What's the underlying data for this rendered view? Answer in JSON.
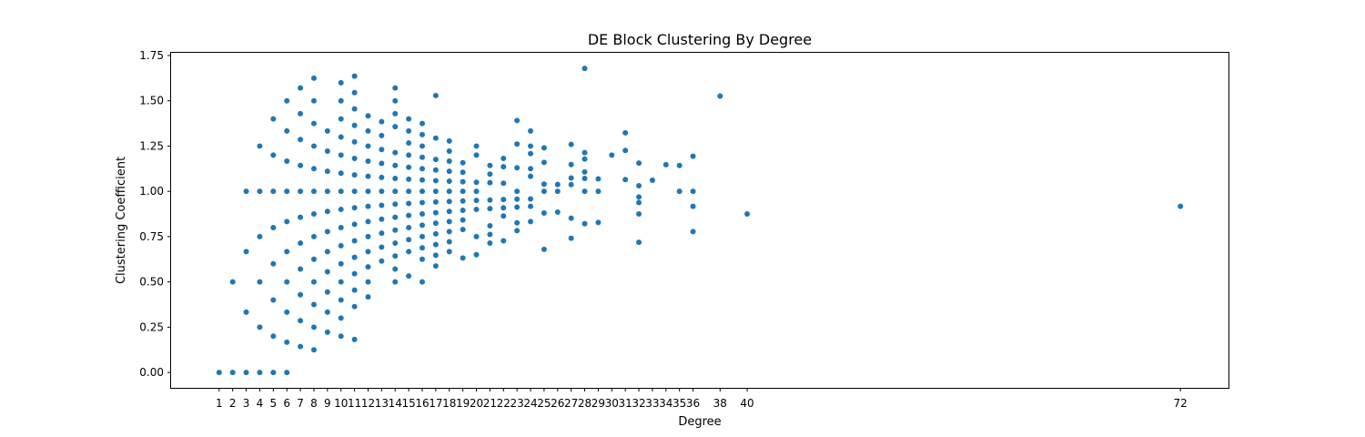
{
  "chart_data": {
    "type": "scatter",
    "title": "DE Block Clustering By Degree",
    "xlabel": "Degree",
    "ylabel": "Clustering Coefficient",
    "xlim": [
      -2.55,
      75.55
    ],
    "ylim": [
      -0.085,
      1.765
    ],
    "xticks": [
      1,
      2,
      3,
      4,
      5,
      6,
      7,
      8,
      9,
      10,
      11,
      12,
      13,
      14,
      15,
      16,
      17,
      18,
      19,
      20,
      21,
      22,
      23,
      24,
      25,
      26,
      27,
      28,
      29,
      30,
      31,
      32,
      33,
      34,
      35,
      36,
      38,
      40,
      72
    ],
    "yticks": [
      0.0,
      0.25,
      0.5,
      0.75,
      1.0,
      1.25,
      1.5,
      1.75
    ],
    "ytick_labels": [
      "0.00",
      "0.25",
      "0.50",
      "0.75",
      "1.00",
      "1.25",
      "1.50",
      "1.75"
    ],
    "marker_color": "#1f77b4",
    "grid": false,
    "points": [
      [
        1,
        0
      ],
      [
        2,
        0
      ],
      [
        2,
        0.5
      ],
      [
        3,
        0
      ],
      [
        3,
        0.333
      ],
      [
        3,
        0.667
      ],
      [
        3,
        1.0
      ],
      [
        4,
        0
      ],
      [
        4,
        0.25
      ],
      [
        4,
        0.5
      ],
      [
        4,
        0.75
      ],
      [
        4,
        1.0
      ],
      [
        4,
        1.25
      ],
      [
        5,
        0
      ],
      [
        5,
        0.2
      ],
      [
        5,
        0.4
      ],
      [
        5,
        0.6
      ],
      [
        5,
        0.8
      ],
      [
        5,
        1.0
      ],
      [
        5,
        1.2
      ],
      [
        5,
        1.4
      ],
      [
        6,
        0
      ],
      [
        6,
        0.167
      ],
      [
        6,
        0.333
      ],
      [
        6,
        0.5
      ],
      [
        6,
        0.667
      ],
      [
        6,
        0.833
      ],
      [
        6,
        1.0
      ],
      [
        6,
        1.167
      ],
      [
        6,
        1.333
      ],
      [
        6,
        1.5
      ],
      [
        7,
        0.143
      ],
      [
        7,
        0.286
      ],
      [
        7,
        0.429
      ],
      [
        7,
        0.571
      ],
      [
        7,
        0.714
      ],
      [
        7,
        0.857
      ],
      [
        7,
        1.0
      ],
      [
        7,
        1.143
      ],
      [
        7,
        1.286
      ],
      [
        7,
        1.429
      ],
      [
        7,
        1.571
      ],
      [
        8,
        0.125
      ],
      [
        8,
        0.25
      ],
      [
        8,
        0.375
      ],
      [
        8,
        0.5
      ],
      [
        8,
        0.625
      ],
      [
        8,
        0.75
      ],
      [
        8,
        0.875
      ],
      [
        8,
        1.0
      ],
      [
        8,
        1.125
      ],
      [
        8,
        1.25
      ],
      [
        8,
        1.375
      ],
      [
        8,
        1.5
      ],
      [
        8,
        1.625
      ],
      [
        9,
        0.222
      ],
      [
        9,
        0.333
      ],
      [
        9,
        0.444
      ],
      [
        9,
        0.556
      ],
      [
        9,
        0.667
      ],
      [
        9,
        0.778
      ],
      [
        9,
        0.889
      ],
      [
        9,
        1.0
      ],
      [
        9,
        1.111
      ],
      [
        9,
        1.222
      ],
      [
        9,
        1.333
      ],
      [
        10,
        0.2
      ],
      [
        10,
        0.3
      ],
      [
        10,
        0.4
      ],
      [
        10,
        0.5
      ],
      [
        10,
        0.6
      ],
      [
        10,
        0.7
      ],
      [
        10,
        0.8
      ],
      [
        10,
        0.9
      ],
      [
        10,
        1.0
      ],
      [
        10,
        1.1
      ],
      [
        10,
        1.2
      ],
      [
        10,
        1.3
      ],
      [
        10,
        1.4
      ],
      [
        10,
        1.5
      ],
      [
        10,
        1.6
      ],
      [
        11,
        0.182
      ],
      [
        11,
        0.364
      ],
      [
        11,
        0.455
      ],
      [
        11,
        0.545
      ],
      [
        11,
        0.636
      ],
      [
        11,
        0.727
      ],
      [
        11,
        0.818
      ],
      [
        11,
        0.909
      ],
      [
        11,
        1.0
      ],
      [
        11,
        1.091
      ],
      [
        11,
        1.182
      ],
      [
        11,
        1.273
      ],
      [
        11,
        1.364
      ],
      [
        11,
        1.455
      ],
      [
        11,
        1.545
      ],
      [
        11,
        1.636
      ],
      [
        12,
        0.417
      ],
      [
        12,
        0.5
      ],
      [
        12,
        0.583
      ],
      [
        12,
        0.667
      ],
      [
        12,
        0.75
      ],
      [
        12,
        0.833
      ],
      [
        12,
        0.917
      ],
      [
        12,
        1.0
      ],
      [
        12,
        1.083
      ],
      [
        12,
        1.167
      ],
      [
        12,
        1.25
      ],
      [
        12,
        1.333
      ],
      [
        12,
        1.417
      ],
      [
        13,
        0.615
      ],
      [
        13,
        0.692
      ],
      [
        13,
        0.769
      ],
      [
        13,
        0.846
      ],
      [
        13,
        0.923
      ],
      [
        13,
        1.0
      ],
      [
        13,
        1.077
      ],
      [
        13,
        1.154
      ],
      [
        13,
        1.231
      ],
      [
        13,
        1.308
      ],
      [
        13,
        1.385
      ],
      [
        14,
        0.5
      ],
      [
        14,
        0.571
      ],
      [
        14,
        0.643
      ],
      [
        14,
        0.714
      ],
      [
        14,
        0.786
      ],
      [
        14,
        0.857
      ],
      [
        14,
        0.929
      ],
      [
        14,
        1.0
      ],
      [
        14,
        1.071
      ],
      [
        14,
        1.143
      ],
      [
        14,
        1.214
      ],
      [
        14,
        1.357
      ],
      [
        14,
        1.429
      ],
      [
        14,
        1.5
      ],
      [
        14,
        1.571
      ],
      [
        15,
        0.533
      ],
      [
        15,
        0.667
      ],
      [
        15,
        0.733
      ],
      [
        15,
        0.8
      ],
      [
        15,
        0.867
      ],
      [
        15,
        0.933
      ],
      [
        15,
        1.0
      ],
      [
        15,
        1.067
      ],
      [
        15,
        1.133
      ],
      [
        15,
        1.2
      ],
      [
        15,
        1.267
      ],
      [
        15,
        1.333
      ],
      [
        15,
        1.4
      ],
      [
        16,
        0.5
      ],
      [
        16,
        0.625
      ],
      [
        16,
        0.688
      ],
      [
        16,
        0.75
      ],
      [
        16,
        0.813
      ],
      [
        16,
        0.875
      ],
      [
        16,
        0.938
      ],
      [
        16,
        1.0
      ],
      [
        16,
        1.063
      ],
      [
        16,
        1.125
      ],
      [
        16,
        1.188
      ],
      [
        16,
        1.25
      ],
      [
        16,
        1.313
      ],
      [
        16,
        1.375
      ],
      [
        17,
        0.588
      ],
      [
        17,
        0.647
      ],
      [
        17,
        0.706
      ],
      [
        17,
        0.765
      ],
      [
        17,
        0.824
      ],
      [
        17,
        0.882
      ],
      [
        17,
        0.941
      ],
      [
        17,
        1.0
      ],
      [
        17,
        1.059
      ],
      [
        17,
        1.118
      ],
      [
        17,
        1.176
      ],
      [
        17,
        1.294
      ],
      [
        17,
        1.529
      ],
      [
        18,
        0.667
      ],
      [
        18,
        0.722
      ],
      [
        18,
        0.778
      ],
      [
        18,
        0.833
      ],
      [
        18,
        0.889
      ],
      [
        18,
        0.944
      ],
      [
        18,
        1.0
      ],
      [
        18,
        1.056
      ],
      [
        18,
        1.111
      ],
      [
        18,
        1.167
      ],
      [
        18,
        1.222
      ],
      [
        18,
        1.278
      ],
      [
        19,
        0.632
      ],
      [
        19,
        0.789
      ],
      [
        19,
        0.842
      ],
      [
        19,
        0.895
      ],
      [
        19,
        0.947
      ],
      [
        19,
        1.0
      ],
      [
        19,
        1.053
      ],
      [
        19,
        1.105
      ],
      [
        19,
        1.158
      ],
      [
        20,
        0.65
      ],
      [
        20,
        0.75
      ],
      [
        20,
        0.9
      ],
      [
        20,
        0.95
      ],
      [
        20,
        1.0
      ],
      [
        20,
        1.05
      ],
      [
        20,
        1.2
      ],
      [
        20,
        1.25
      ],
      [
        21,
        0.714
      ],
      [
        21,
        0.762
      ],
      [
        21,
        0.81
      ],
      [
        21,
        0.905
      ],
      [
        21,
        0.952
      ],
      [
        21,
        1.048
      ],
      [
        21,
        1.095
      ],
      [
        21,
        1.143
      ],
      [
        22,
        0.727
      ],
      [
        22,
        0.864
      ],
      [
        22,
        0.909
      ],
      [
        22,
        0.955
      ],
      [
        22,
        1.045
      ],
      [
        22,
        1.136
      ],
      [
        22,
        1.182
      ],
      [
        23,
        0.783
      ],
      [
        23,
        0.826
      ],
      [
        23,
        0.913
      ],
      [
        23,
        0.957
      ],
      [
        23,
        1.0
      ],
      [
        23,
        1.13
      ],
      [
        23,
        1.261
      ],
      [
        23,
        1.391
      ],
      [
        24,
        0.833
      ],
      [
        24,
        0.917
      ],
      [
        24,
        0.958
      ],
      [
        24,
        1.083
      ],
      [
        24,
        1.125
      ],
      [
        24,
        1.208
      ],
      [
        24,
        1.25
      ],
      [
        24,
        1.333
      ],
      [
        25,
        0.68
      ],
      [
        25,
        0.88
      ],
      [
        25,
        1.0
      ],
      [
        25,
        1.04
      ],
      [
        25,
        1.16
      ],
      [
        25,
        1.24
      ],
      [
        26,
        0.885
      ],
      [
        26,
        1.0
      ],
      [
        26,
        1.038
      ],
      [
        27,
        0.741
      ],
      [
        27,
        0.852
      ],
      [
        27,
        1.037
      ],
      [
        27,
        1.074
      ],
      [
        27,
        1.148
      ],
      [
        27,
        1.259
      ],
      [
        28,
        0.821
      ],
      [
        28,
        1.0
      ],
      [
        28,
        1.071
      ],
      [
        28,
        1.107
      ],
      [
        28,
        1.179
      ],
      [
        28,
        1.214
      ],
      [
        28,
        1.679
      ],
      [
        29,
        0.828
      ],
      [
        29,
        1.0
      ],
      [
        29,
        1.069
      ],
      [
        30,
        1.2
      ],
      [
        31,
        1.065
      ],
      [
        31,
        1.226
      ],
      [
        31,
        1.323
      ],
      [
        32,
        0.719
      ],
      [
        32,
        0.875
      ],
      [
        32,
        0.938
      ],
      [
        32,
        0.969
      ],
      [
        32,
        1.031
      ],
      [
        32,
        1.156
      ],
      [
        33,
        1.061
      ],
      [
        34,
        1.147
      ],
      [
        35,
        1.0
      ],
      [
        35,
        1.143
      ],
      [
        36,
        0.778
      ],
      [
        36,
        0.917
      ],
      [
        36,
        1.0
      ],
      [
        36,
        1.194
      ],
      [
        38,
        1.526
      ],
      [
        40,
        0.875
      ],
      [
        72,
        0.917
      ]
    ]
  }
}
